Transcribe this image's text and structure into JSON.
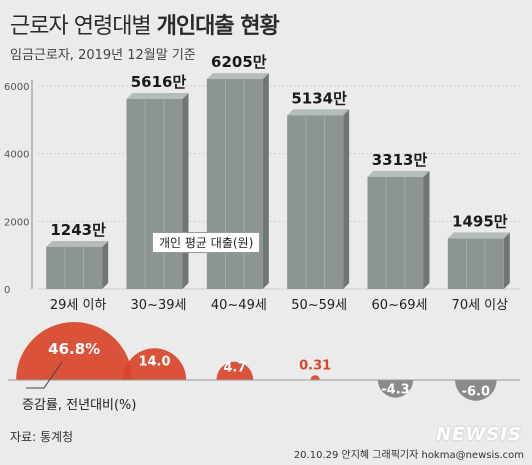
{
  "title_light": "근로자 연령대별",
  "title_bold": "개인대출 현황",
  "subtitle": "임금근로자, 2019년 12월말 기준",
  "source": "자료: 통계청",
  "credit": "20.10.29 안지혜 그래픽기자  hokma@newsis.com",
  "watermark": "NEWSIS",
  "colors": {
    "bar": "#8c9494",
    "bar_top": "#b5bcbc",
    "bar_side": "#6f7676",
    "positive": "#d9442b",
    "negative": "#8a8a8a",
    "value_text": "#1a1a1a"
  },
  "chart_data": [
    {
      "type": "bar",
      "categories": [
        "29세 이하",
        "30~39세",
        "40~49세",
        "50~59세",
        "60~69세",
        "70세 이상"
      ],
      "values": [
        1243,
        5616,
        6205,
        5134,
        3313,
        1495
      ],
      "value_labels": [
        "1243만",
        "5616만",
        "6205만",
        "5134만",
        "3313만",
        "1495만"
      ],
      "series_label": "개인 평균 대출(원)",
      "ylim": [
        0,
        6000
      ],
      "yticks": [
        0,
        2000,
        4000,
        6000
      ],
      "grid": true
    },
    {
      "type": "bar",
      "series_label": "증감률, 전년대비(%)",
      "categories": [
        "29세 이하",
        "30~39세",
        "40~49세",
        "50~59세",
        "60~69세",
        "70세 이상"
      ],
      "values": [
        46.8,
        14.0,
        4.7,
        0.31,
        -4.3,
        -6.0
      ],
      "value_labels": [
        "46.8%",
        "14.0",
        "4.7",
        "0.31",
        "-4.3",
        "-6.0"
      ]
    }
  ]
}
